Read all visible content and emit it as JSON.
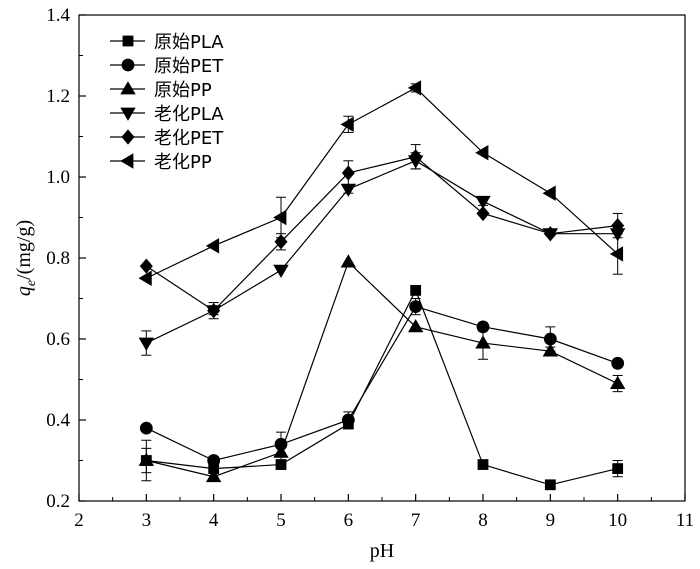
{
  "chart_data": {
    "type": "line",
    "xlabel": "pH",
    "ylabel_symbol": "q",
    "ylabel_subscript": "e",
    "ylabel_rest": "/(mg/g)",
    "xlim": [
      2,
      11
    ],
    "ylim": [
      0.2,
      1.4
    ],
    "xticks": [
      "2",
      "3",
      "4",
      "5",
      "6",
      "7",
      "8",
      "9",
      "10",
      "11"
    ],
    "yticks": [
      "0.2",
      "0.4",
      "0.6",
      "0.8",
      "1.0",
      "1.2",
      "1.4"
    ],
    "grid": false,
    "legend_position": "top-left",
    "x": [
      3,
      4,
      5,
      6,
      7,
      8,
      9,
      10
    ],
    "series": [
      {
        "name": "原始PLA",
        "marker": "square",
        "values": [
          0.3,
          0.28,
          0.29,
          0.39,
          0.72,
          0.29,
          0.24,
          0.28
        ],
        "errors": [
          0.05,
          0.01,
          0.01,
          0.01,
          0.01,
          0.01,
          0.01,
          0.02
        ]
      },
      {
        "name": "原始PET",
        "marker": "circle",
        "values": [
          0.38,
          0.3,
          0.34,
          0.4,
          0.68,
          0.63,
          0.6,
          0.54
        ],
        "errors": [
          0.0,
          0.01,
          0.03,
          0.02,
          0.02,
          0.01,
          0.03,
          0.0
        ]
      },
      {
        "name": "原始PP",
        "marker": "triangle-up",
        "values": [
          0.3,
          0.26,
          0.32,
          0.79,
          0.63,
          0.59,
          0.57,
          0.49
        ],
        "errors": [
          0.03,
          0.01,
          0.02,
          0.0,
          0.0,
          0.04,
          0.01,
          0.02
        ]
      },
      {
        "name": "老化PLA",
        "marker": "triangle-down",
        "values": [
          0.59,
          0.67,
          0.77,
          0.97,
          1.04,
          0.94,
          0.86,
          0.86
        ],
        "errors": [
          0.03,
          0.01,
          0.0,
          0.01,
          0.02,
          0.01,
          0.0,
          0.0
        ]
      },
      {
        "name": "老化PET",
        "marker": "diamond",
        "values": [
          0.78,
          0.67,
          0.84,
          1.01,
          1.05,
          0.91,
          0.86,
          0.88
        ],
        "errors": [
          0.0,
          0.02,
          0.02,
          0.03,
          0.03,
          0.0,
          0.0,
          0.03
        ]
      },
      {
        "name": "老化PP",
        "marker": "triangle-left",
        "values": [
          0.75,
          0.83,
          0.9,
          1.13,
          1.22,
          1.06,
          0.96,
          0.81
        ],
        "errors": [
          0.0,
          0.0,
          0.05,
          0.02,
          0.01,
          0.0,
          0.0,
          0.05
        ]
      }
    ]
  }
}
